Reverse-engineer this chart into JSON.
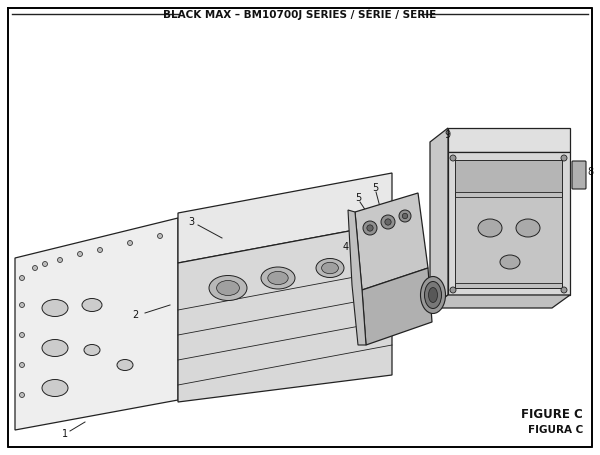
{
  "title": "BLACK MAX – BM10700J SERIES / SÉRIE / SERIE",
  "figure_label": "FIGURE C",
  "figura_label": "FIGURA C",
  "bg_color": "#ffffff",
  "border_color": "#000000",
  "line_color": "#222222",
  "text_color": "#111111",
  "fig_width": 6.0,
  "fig_height": 4.55,
  "dpi": 100
}
